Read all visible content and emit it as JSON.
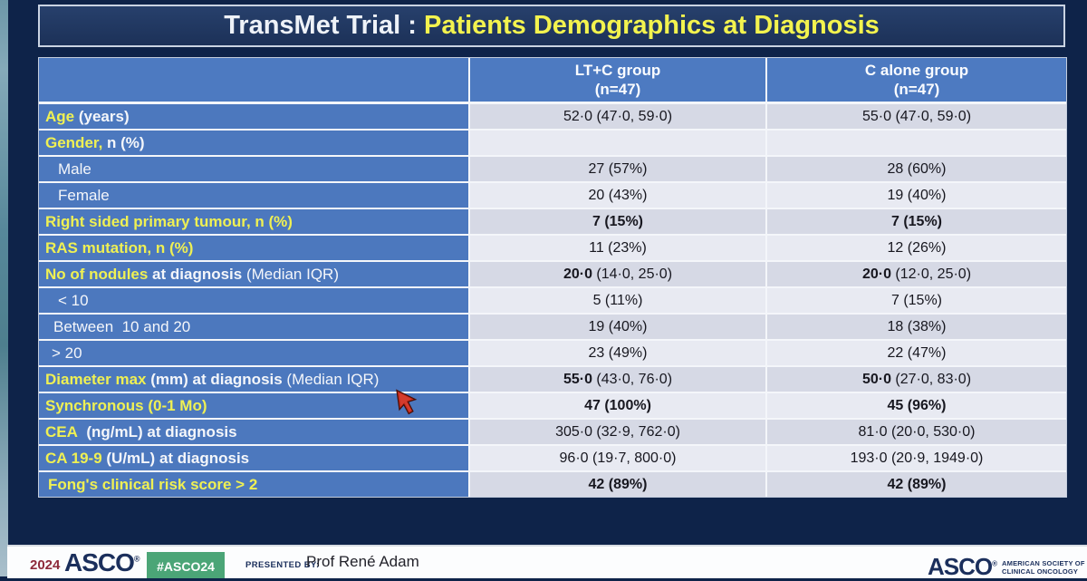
{
  "title": {
    "prefix": "TransMet Trial : ",
    "highlight": "Patients Demographics at Diagnosis"
  },
  "table": {
    "columns": [
      {
        "line1": "LT+C group",
        "line2": "(n=47)"
      },
      {
        "line1": "C alone group",
        "line2": "(n=47)"
      }
    ],
    "rows": [
      {
        "indent": 7,
        "label": [
          {
            "text": "Age",
            "color": "yellow",
            "bold": true
          },
          {
            "text": " (years)",
            "color": "white",
            "bold": true
          }
        ],
        "ltc": [
          {
            "text": "52·0 (47·0, 59·0)",
            "bold": false
          }
        ],
        "c_alone": [
          {
            "text": "55·0 (47·0, 59·0)",
            "bold": false
          }
        ]
      },
      {
        "indent": 7,
        "label": [
          {
            "text": "Gender,",
            "color": "yellow",
            "bold": true
          },
          {
            "text": " n (%)",
            "color": "white",
            "bold": true
          }
        ],
        "ltc": [],
        "c_alone": []
      },
      {
        "indent": 21,
        "label": [
          {
            "text": "Male",
            "color": "white",
            "bold": false
          }
        ],
        "ltc": [
          {
            "text": "27 (57%)",
            "bold": false
          }
        ],
        "c_alone": [
          {
            "text": "28 (60%)",
            "bold": false
          }
        ]
      },
      {
        "indent": 21,
        "label": [
          {
            "text": "Female",
            "color": "white",
            "bold": false
          }
        ],
        "ltc": [
          {
            "text": "20 (43%)",
            "bold": false
          }
        ],
        "c_alone": [
          {
            "text": "19 (40%)",
            "bold": false
          }
        ]
      },
      {
        "indent": 7,
        "label": [
          {
            "text": "Right sided primary tumour, n (%)",
            "color": "yellow",
            "bold": true
          }
        ],
        "ltc": [
          {
            "text": "7 (15%)",
            "bold": true
          }
        ],
        "c_alone": [
          {
            "text": "7 (15%)",
            "bold": true
          }
        ]
      },
      {
        "indent": 7,
        "label": [
          {
            "text": "RAS mutation, n (%)",
            "color": "yellow",
            "bold": true
          }
        ],
        "ltc": [
          {
            "text": "11 (23%)",
            "bold": false
          }
        ],
        "c_alone": [
          {
            "text": "12 (26%)",
            "bold": false
          }
        ]
      },
      {
        "indent": 7,
        "label": [
          {
            "text": "No of nodules",
            "color": "yellow",
            "bold": true
          },
          {
            "text": " at diagnosis",
            "color": "white",
            "bold": true
          },
          {
            "text": " (Median IQR)",
            "color": "white",
            "bold": false
          }
        ],
        "ltc": [
          {
            "text": "20·0",
            "bold": true
          },
          {
            "text": " (14·0, 25·0)",
            "bold": false
          }
        ],
        "c_alone": [
          {
            "text": "20·0",
            "bold": true
          },
          {
            "text": " (12·0, 25·0)",
            "bold": false
          }
        ]
      },
      {
        "indent": 21,
        "label": [
          {
            "text": "< 10",
            "color": "white",
            "bold": false
          }
        ],
        "ltc": [
          {
            "text": "5 (11%)",
            "bold": false
          }
        ],
        "c_alone": [
          {
            "text": "7 (15%)",
            "bold": false
          }
        ]
      },
      {
        "indent": 16,
        "label": [
          {
            "text": "Between  10 and 20",
            "color": "white",
            "bold": false
          }
        ],
        "ltc": [
          {
            "text": "19 (40%)",
            "bold": false
          }
        ],
        "c_alone": [
          {
            "text": "18 (38%)",
            "bold": false
          }
        ]
      },
      {
        "indent": 14,
        "label": [
          {
            "text": "> 20",
            "color": "white",
            "bold": false
          }
        ],
        "ltc": [
          {
            "text": "23 (49%)",
            "bold": false
          }
        ],
        "c_alone": [
          {
            "text": "22 (47%)",
            "bold": false
          }
        ]
      },
      {
        "indent": 7,
        "label": [
          {
            "text": "Diameter max",
            "color": "yellow",
            "bold": true
          },
          {
            "text": " (mm) at diagnosis",
            "color": "white",
            "bold": true
          },
          {
            "text": " (Median IQR)",
            "color": "white",
            "bold": false
          }
        ],
        "ltc": [
          {
            "text": "55·0",
            "bold": true
          },
          {
            "text": " (43·0, 76·0)",
            "bold": false
          }
        ],
        "c_alone": [
          {
            "text": "50·0",
            "bold": true
          },
          {
            "text": " (27·0, 83·0)",
            "bold": false
          }
        ]
      },
      {
        "indent": 7,
        "label": [
          {
            "text": "Synchronous (0-1 Mo)",
            "color": "yellow",
            "bold": true
          }
        ],
        "ltc": [
          {
            "text": "47 (100%)",
            "bold": true
          }
        ],
        "c_alone": [
          {
            "text": "45 (96%)",
            "bold": true
          }
        ]
      },
      {
        "indent": 7,
        "label": [
          {
            "text": "CEA",
            "color": "yellow",
            "bold": true
          },
          {
            "text": "  (ng/mL) at diagnosis",
            "color": "white",
            "bold": true
          }
        ],
        "ltc": [
          {
            "text": "305·0 (32·9, 762·0)",
            "bold": false
          }
        ],
        "c_alone": [
          {
            "text": "81·0 (20·0, 530·0)",
            "bold": false
          }
        ]
      },
      {
        "indent": 7,
        "label": [
          {
            "text": "CA 19-9",
            "color": "yellow",
            "bold": true
          },
          {
            "text": " (U/mL) at diagnosis",
            "color": "white",
            "bold": true
          }
        ],
        "ltc": [
          {
            "text": "96·0 (19·7, 800·0)",
            "bold": false
          }
        ],
        "c_alone": [
          {
            "text": "193·0 (20·9, 1949·0)",
            "bold": false
          }
        ]
      },
      {
        "indent": 10,
        "label": [
          {
            "text": "Fong's clinical risk score > 2",
            "color": "yellow",
            "bold": true
          }
        ],
        "ltc": [
          {
            "text": "42 (89%)",
            "bold": true
          }
        ],
        "c_alone": [
          {
            "text": "42 (89%)",
            "bold": true
          }
        ]
      }
    ]
  },
  "footer": {
    "year": "2024",
    "asco_wordmark": "ASCO",
    "hashtag": "#ASCO24",
    "presented_by_label": "PRESENTED BY:",
    "presenter": "Prof René Adam",
    "logo_word": "ASCO",
    "logo_sub1": "AMERICAN SOCIETY OF",
    "logo_sub2": "CLINICAL ONCOLOGY"
  },
  "colors": {
    "page_bg": "#0e2349",
    "header_blue": "#4d7ac1",
    "label_blue": "#4c78be",
    "band_dark": "#d6d9e5",
    "band_light": "#e8eaf2",
    "accent_yellow": "#eff053",
    "hashtag_green": "#4ba577",
    "cursor_red": "#c62a1c"
  }
}
